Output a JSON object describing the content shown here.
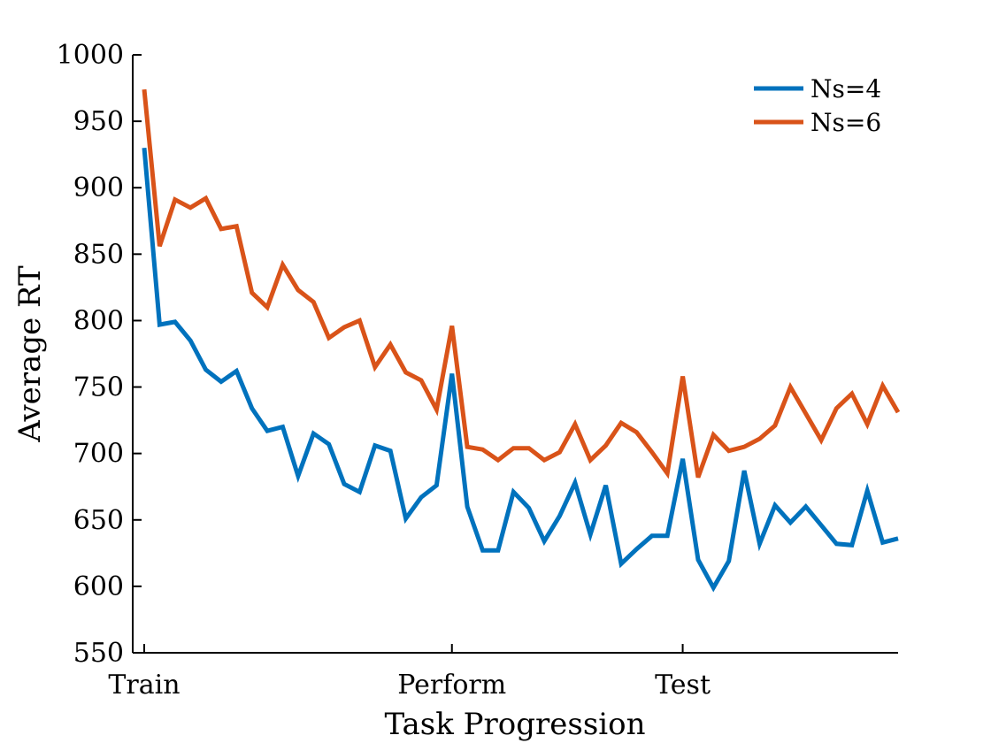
{
  "chart_data": {
    "type": "line",
    "xlabel": "Task Progression",
    "ylabel": "Average RT",
    "ylim": [
      550,
      1000
    ],
    "yticks": [
      550,
      600,
      650,
      700,
      750,
      800,
      850,
      900,
      950,
      1000
    ],
    "x_ticks": [
      {
        "index": 0,
        "label": "Train"
      },
      {
        "index": 20,
        "label": "Perform"
      },
      {
        "index": 35,
        "label": "Test"
      }
    ],
    "x_count": 50,
    "grid": false,
    "legend_position": "top-right",
    "series": [
      {
        "name": "Ns=4",
        "color": "#0072BD",
        "values": [
          930,
          797,
          799,
          785,
          763,
          754,
          762,
          734,
          717,
          720,
          683,
          715,
          707,
          677,
          671,
          706,
          702,
          651,
          667,
          676,
          760,
          660,
          627,
          627,
          671,
          659,
          634,
          653,
          678,
          639,
          676,
          617,
          628,
          638,
          638,
          696,
          620,
          599,
          619,
          687,
          632,
          661,
          648,
          660,
          646,
          632,
          631,
          672,
          633,
          636
        ]
      },
      {
        "name": "Ns=6",
        "color": "#D95319",
        "values": [
          974,
          856,
          891,
          885,
          892,
          869,
          871,
          821,
          810,
          842,
          823,
          814,
          787,
          795,
          800,
          765,
          782,
          761,
          755,
          733,
          796,
          705,
          703,
          695,
          704,
          704,
          695,
          701,
          722,
          695,
          706,
          723,
          716,
          701,
          685,
          758,
          682,
          714,
          702,
          705,
          711,
          721,
          750,
          730,
          710,
          734,
          745,
          722,
          751,
          731
        ]
      }
    ]
  }
}
